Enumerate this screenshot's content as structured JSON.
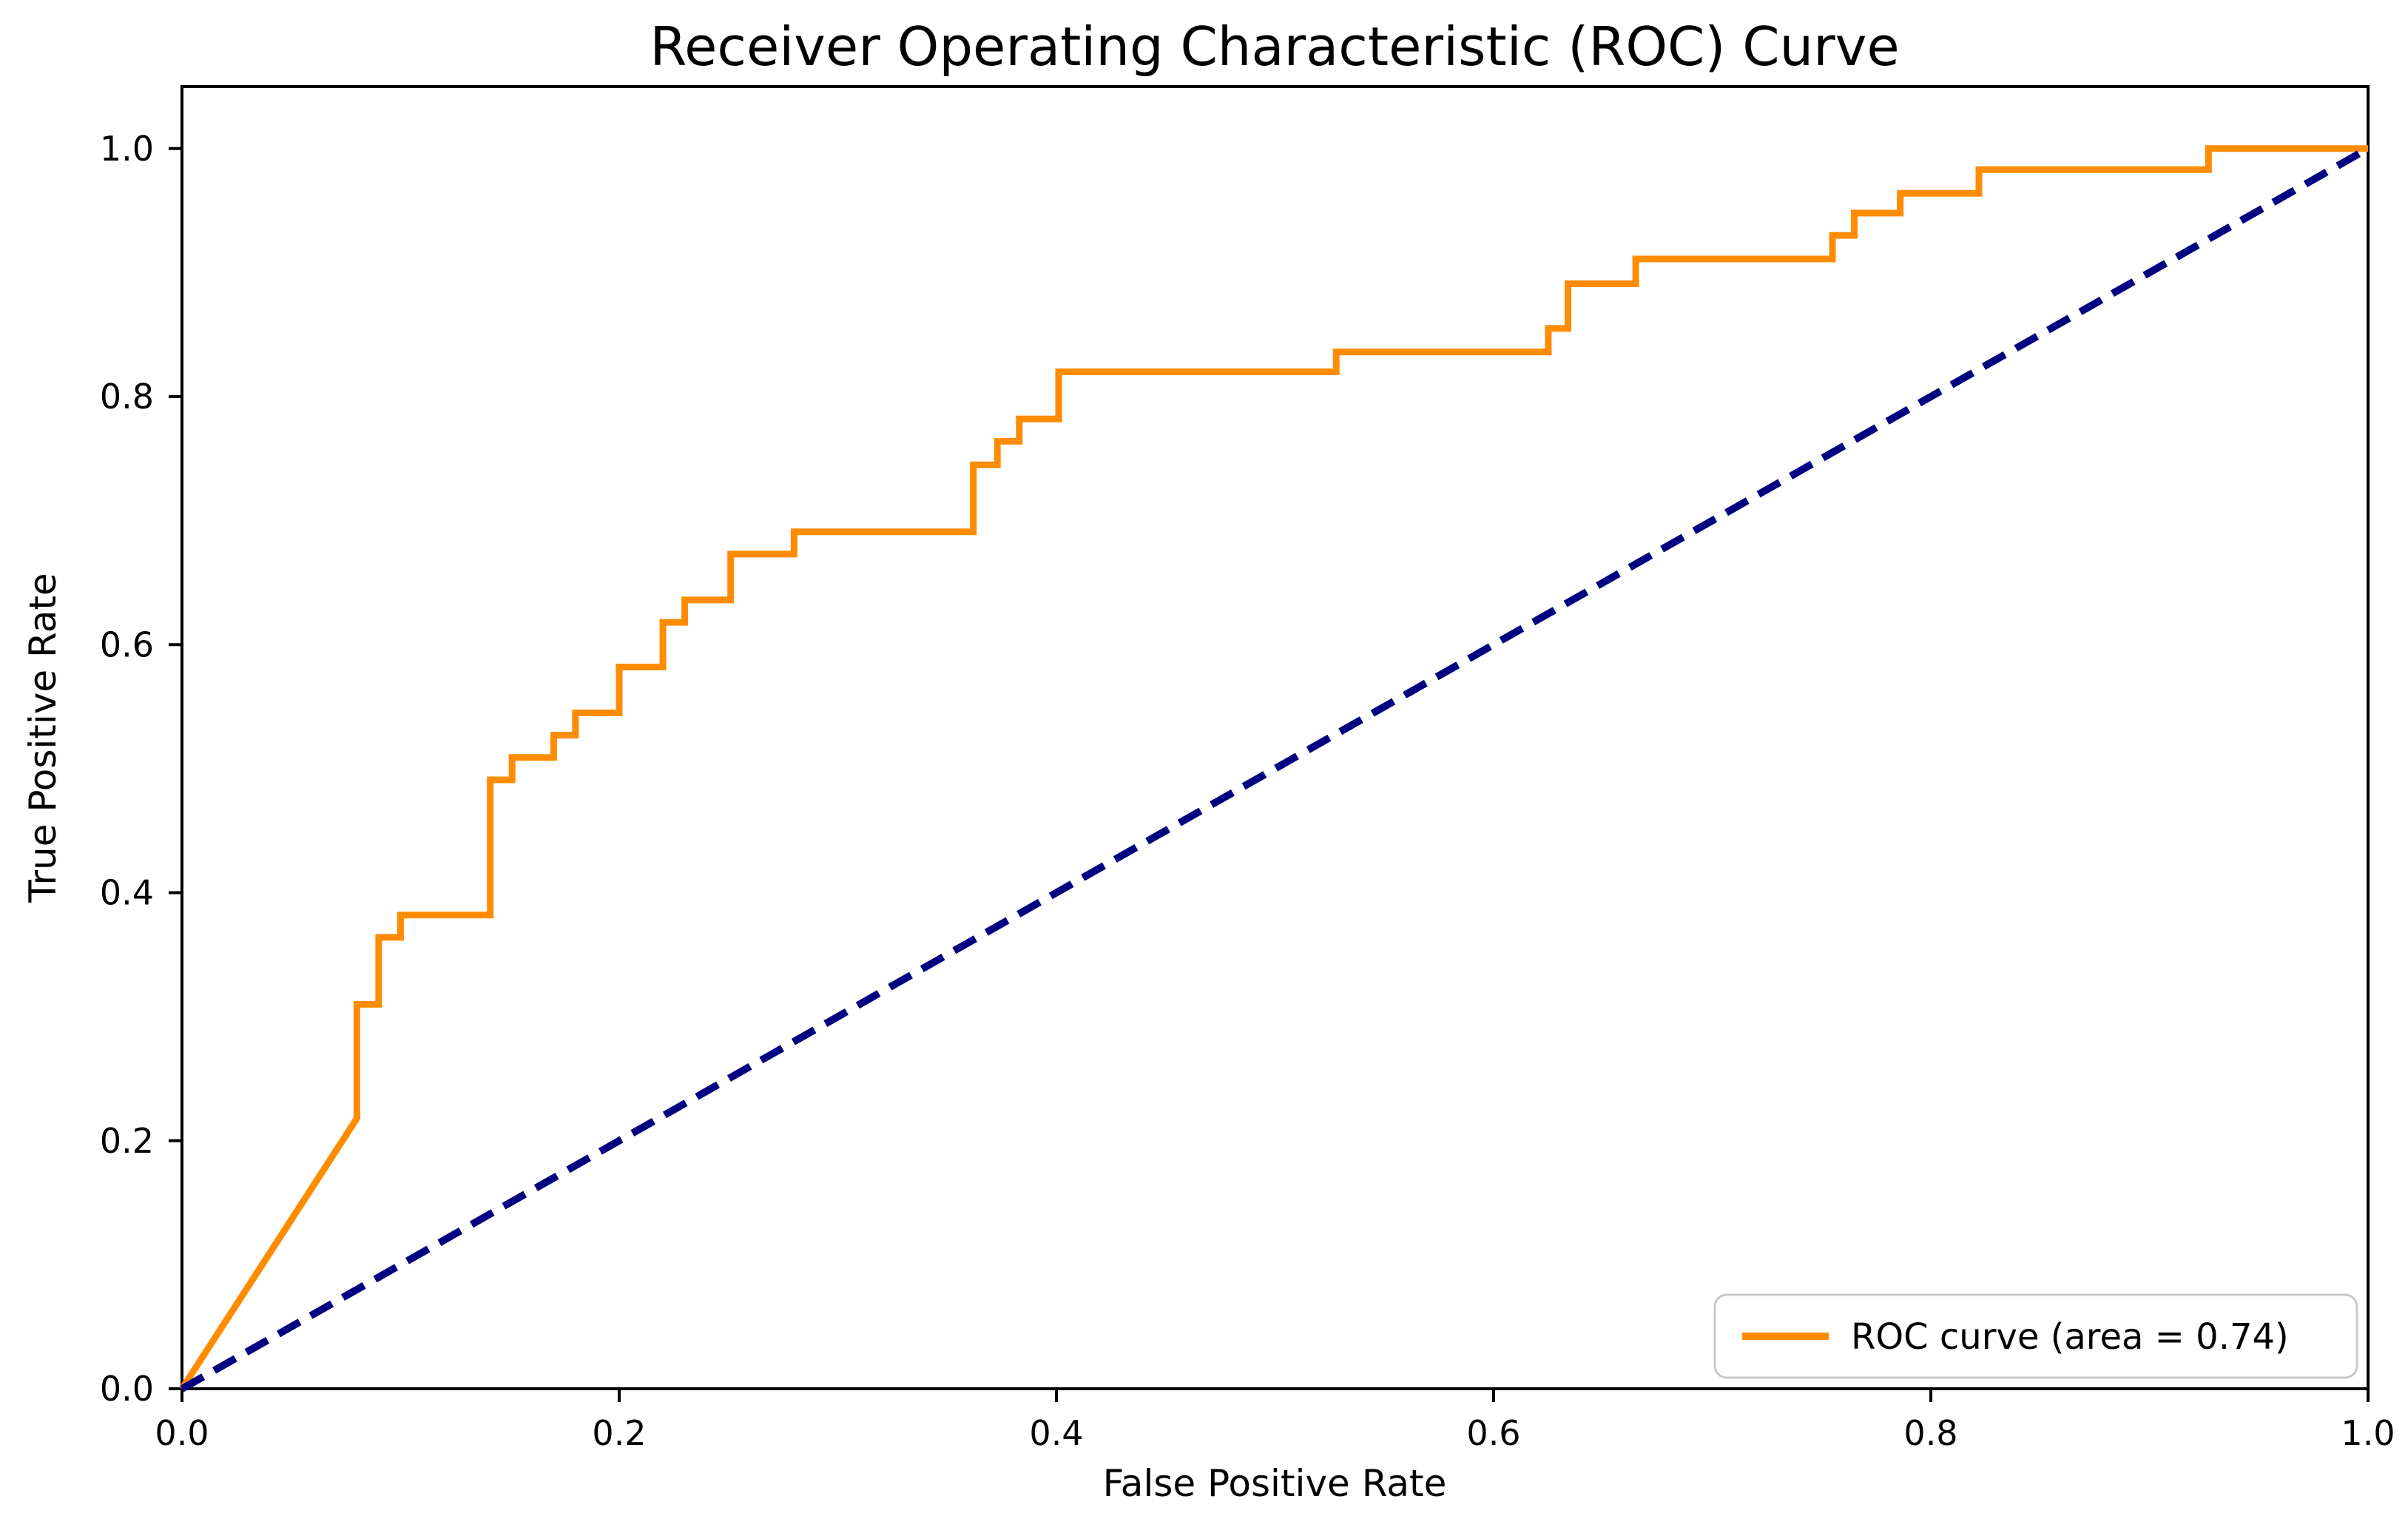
{
  "chart_data": {
    "type": "line",
    "title": "Receiver Operating Characteristic (ROC) Curve",
    "xlabel": "False Positive Rate",
    "ylabel": "True Positive Rate",
    "xlim": [
      0.0,
      1.0
    ],
    "ylim": [
      0.0,
      1.05
    ],
    "grid": false,
    "x_tick_values": [
      0.0,
      0.2,
      0.4,
      0.6,
      0.8,
      1.0
    ],
    "x_tick_labels": [
      "0.0",
      "0.2",
      "0.4",
      "0.6",
      "0.8",
      "1.0"
    ],
    "y_tick_values": [
      0.0,
      0.2,
      0.4,
      0.6,
      0.8,
      1.0
    ],
    "y_tick_labels": [
      "0.0",
      "0.2",
      "0.4",
      "0.6",
      "0.8",
      "1.0"
    ],
    "auc": 0.74,
    "legend": {
      "position": "lower right",
      "entries": [
        {
          "label": "ROC curve (area = 0.74)",
          "color": "#FF8C00",
          "style": "solid"
        }
      ]
    },
    "series": [
      {
        "name": "ROC curve (area = 0.74)",
        "color": "#FF8C00",
        "style": "solid",
        "linewidth": 9,
        "points": [
          [
            0.0,
            0.0
          ],
          [
            0.08,
            0.218
          ],
          [
            0.08,
            0.31
          ],
          [
            0.09,
            0.31
          ],
          [
            0.09,
            0.364
          ],
          [
            0.1,
            0.364
          ],
          [
            0.1,
            0.382
          ],
          [
            0.141,
            0.382
          ],
          [
            0.141,
            0.491
          ],
          [
            0.151,
            0.491
          ],
          [
            0.151,
            0.509
          ],
          [
            0.17,
            0.509
          ],
          [
            0.17,
            0.527
          ],
          [
            0.18,
            0.527
          ],
          [
            0.18,
            0.545
          ],
          [
            0.2,
            0.545
          ],
          [
            0.2,
            0.582
          ],
          [
            0.22,
            0.582
          ],
          [
            0.22,
            0.618
          ],
          [
            0.23,
            0.618
          ],
          [
            0.23,
            0.636
          ],
          [
            0.251,
            0.636
          ],
          [
            0.251,
            0.673
          ],
          [
            0.28,
            0.673
          ],
          [
            0.28,
            0.691
          ],
          [
            0.362,
            0.691
          ],
          [
            0.362,
            0.745
          ],
          [
            0.373,
            0.745
          ],
          [
            0.373,
            0.764
          ],
          [
            0.383,
            0.764
          ],
          [
            0.383,
            0.782
          ],
          [
            0.401,
            0.782
          ],
          [
            0.401,
            0.82
          ],
          [
            0.528,
            0.82
          ],
          [
            0.528,
            0.836
          ],
          [
            0.625,
            0.836
          ],
          [
            0.625,
            0.855
          ],
          [
            0.634,
            0.855
          ],
          [
            0.634,
            0.891
          ],
          [
            0.665,
            0.891
          ],
          [
            0.665,
            0.911
          ],
          [
            0.755,
            0.911
          ],
          [
            0.755,
            0.93
          ],
          [
            0.765,
            0.93
          ],
          [
            0.765,
            0.948
          ],
          [
            0.786,
            0.948
          ],
          [
            0.786,
            0.964
          ],
          [
            0.822,
            0.964
          ],
          [
            0.822,
            0.983
          ],
          [
            0.927,
            0.983
          ],
          [
            0.927,
            1.0
          ],
          [
            1.0,
            1.0
          ]
        ]
      },
      {
        "name": "chance-diagonal",
        "color": "#000080",
        "style": "dashed",
        "linewidth": 10,
        "points": [
          [
            0.0,
            0.0
          ],
          [
            1.0,
            1.0
          ]
        ]
      }
    ],
    "colors": {
      "roc": "#FF8C00",
      "chance": "#000080",
      "spine": "#000000",
      "legend_edge": "#c8c8c8",
      "background": "#ffffff"
    }
  }
}
